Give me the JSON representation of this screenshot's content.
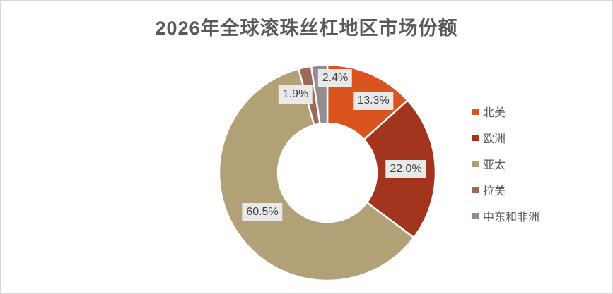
{
  "window": {
    "background": "#FFFFFF",
    "border_color": "#D6D6D6"
  },
  "chart_data": {
    "type": "pie",
    "subtype": "donut",
    "title": "2026年全球滚珠丝杠地区市场份额",
    "title_color": "#595959",
    "categories": [
      "北美",
      "欧洲",
      "亚太",
      "拉美",
      "中东和非洲"
    ],
    "series": [
      {
        "name": "北美",
        "value": 13.3,
        "label": "13.3%",
        "color": "#D9541E"
      },
      {
        "name": "欧洲",
        "value": 22.0,
        "label": "22.0%",
        "color": "#A3341E"
      },
      {
        "name": "亚太",
        "value": 60.5,
        "label": "60.5%",
        "color": "#B2A077"
      },
      {
        "name": "拉美",
        "value": 1.9,
        "label": "1.9%",
        "color": "#9C6A56"
      },
      {
        "name": "中东和非洲",
        "value": 2.4,
        "label": "2.4%",
        "color": "#938C90"
      }
    ],
    "legend_position": "right",
    "legend_text_color": "#595959",
    "donut_hole_ratio": 0.46,
    "start_angle_deg": 0,
    "direction": "clockwise",
    "slice_border_color": "#FFFFFF",
    "data_label_background": "#E9E9E9",
    "data_label_color": "#3F3F3F"
  }
}
